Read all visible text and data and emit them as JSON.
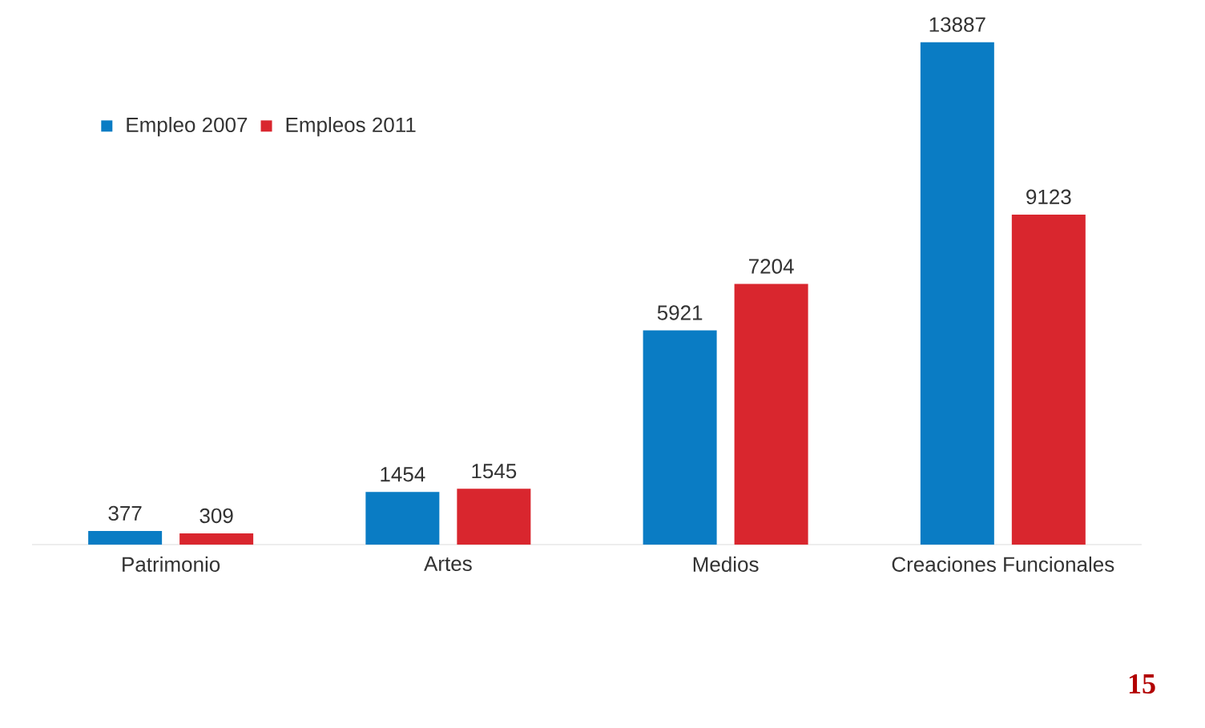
{
  "chart_data": {
    "type": "bar",
    "categories": [
      "Patrimonio",
      "Artes",
      "Medios",
      "Creaciones Funcionales"
    ],
    "series": [
      {
        "name": "Empleo 2007",
        "color": "#0a7cc4",
        "values": [
          377,
          1454,
          5921,
          13887
        ]
      },
      {
        "name": "Empleos 2011",
        "color": "#d9262e",
        "values": [
          309,
          1545,
          7204,
          9123
        ]
      }
    ],
    "data_labels": true,
    "legend": "top left",
    "annotations": [
      "15"
    ]
  }
}
